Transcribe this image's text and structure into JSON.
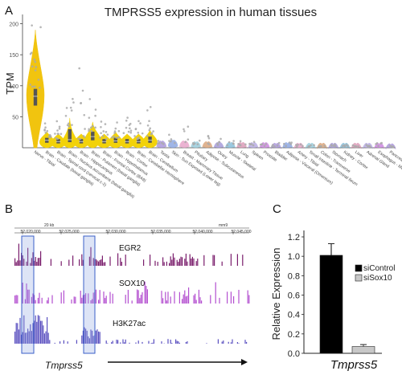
{
  "figure_panels": {
    "a": "A",
    "b": "B",
    "c": "C"
  },
  "chart_data": [
    {
      "type": "violin",
      "panel": "A",
      "title": "TMPRSS5 expression in human tissues",
      "ylabel": "TPM",
      "yticks": [
        50,
        100,
        150,
        200
      ],
      "ylim": [
        0,
        215
      ],
      "violin_colors": {
        "Nerve - Tibial": "#f1c40f",
        "Brain": "#f2d20a",
        "Other": "#b9c7e6"
      },
      "categories": [
        "Nerve - Tibial",
        "Brain - Caudate (basal ganglia)",
        "Brain - Spinal cord (cervical c-1)",
        "Brain - Nucleus accumbens (basal ganglia)",
        "Brain - Hippocampus",
        "Brain - Putamen (basal ganglia)",
        "Brain - Frontal Cortex (BA9)",
        "Brain - Hypothalamus",
        "Brain - Cortex",
        "Brain - Cerebellar Hemisphere",
        "Brain - Cerebellum",
        "Testis",
        "Skin - Sun Exposed (Lower leg)",
        "Breast - Mammary Tissue",
        "Pituitary",
        "Adipose - Subcutaneous",
        "Ovary",
        "Muscle - Skeletal",
        "Lung",
        "Spleen",
        "Prostate",
        "Bladder",
        "Adipose - Visceral (Omentum)",
        "Artery - Tibial",
        "Small Intestine - Terminal Ileum",
        "Colon - Transverse",
        "Stomach",
        "Kidney - Cortex",
        "Liver",
        "Adrenal Gland",
        "Esophagus - Mucosa",
        "Pancreas"
      ],
      "medians": [
        83,
        12,
        10,
        13,
        10,
        18,
        10,
        11,
        10,
        10,
        12,
        4,
        5,
        4,
        3,
        3,
        2,
        2,
        2,
        2,
        2,
        1,
        2,
        1,
        1,
        1,
        1,
        1,
        1,
        1,
        1,
        0
      ],
      "q3": [
        95,
        16,
        14,
        30,
        14,
        26,
        14,
        16,
        14,
        14,
        18,
        6,
        7,
        6,
        5,
        5,
        4,
        4,
        4,
        3,
        3,
        2,
        3,
        2,
        2,
        2,
        2,
        2,
        2,
        2,
        2,
        1
      ],
      "q1": [
        68,
        8,
        7,
        9,
        7,
        12,
        7,
        8,
        7,
        7,
        8,
        2,
        3,
        2,
        2,
        2,
        1,
        1,
        1,
        1,
        1,
        0,
        1,
        0,
        0,
        0,
        0,
        0,
        0,
        0,
        0,
        0
      ],
      "max_outliers": [
        205,
        60,
        45,
        85,
        150,
        95,
        55,
        45,
        50,
        45,
        75,
        12,
        25,
        40,
        20,
        20,
        18,
        15,
        12,
        12,
        10,
        8,
        10,
        8,
        8,
        10,
        6,
        6,
        5,
        6,
        8,
        4
      ]
    },
    {
      "type": "genome_tracks",
      "panel": "B",
      "scale_label": "20 kb",
      "assembly": "mm9",
      "coordinates": [
        "52,020,000",
        "52,025,000",
        "52,030,000",
        "52,035,000",
        "52,040,000",
        "52,045,000"
      ],
      "tracks": [
        {
          "name": "EGR2",
          "color": "#7a1d6c"
        },
        {
          "name": "SOX10",
          "color": "#b44fd0"
        },
        {
          "name": "H3K27ac",
          "color": "#5a4fc0"
        }
      ],
      "gene_label": "Tmprss5"
    },
    {
      "type": "bar",
      "panel": "C",
      "categories": [
        "siControl",
        "siSox10"
      ],
      "values": [
        1.01,
        0.07
      ],
      "errors": [
        0.12,
        0.02
      ],
      "colors": [
        "#000000",
        "#c8c8c8"
      ],
      "ylabel": "Relative Expression",
      "xlabel": "Tmprss5",
      "yticks": [
        "0.0",
        "0.2",
        "0.4",
        "0.6",
        "0.8",
        "1.0",
        "1.2"
      ],
      "ylim": [
        0,
        1.2
      ]
    }
  ]
}
